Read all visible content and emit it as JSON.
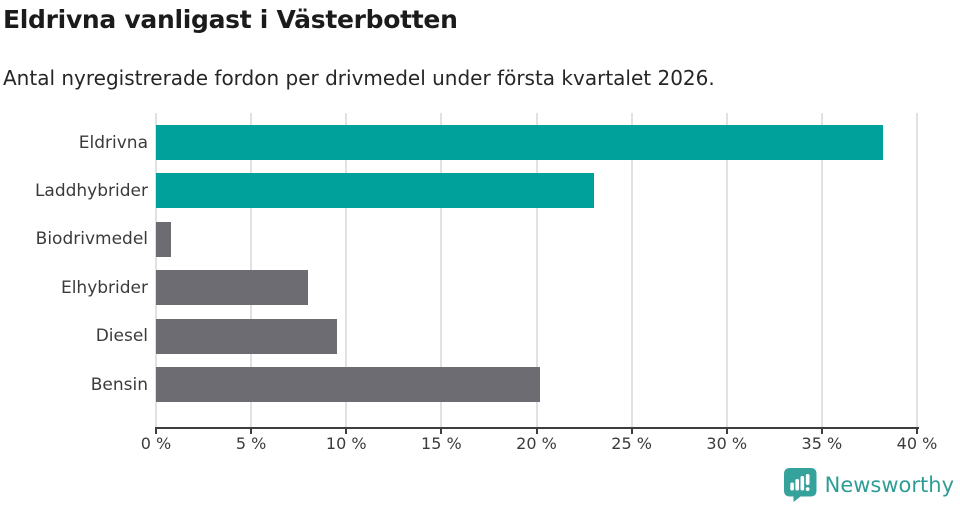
{
  "header": {
    "title": "Eldrivna vanligast i Västerbotten",
    "subtitle": "Antal nyregistrerade fordon per drivmedel under första kvartalet 2026."
  },
  "chart_data": {
    "type": "bar",
    "orientation": "horizontal",
    "title": "Eldrivna vanligast i Västerbotten",
    "subtitle": "Antal nyregistrerade fordon per drivmedel under första kvartalet 2026.",
    "categories": [
      "Eldrivna",
      "Laddhybrider",
      "Biodrivmedel",
      "Elhybrider",
      "Diesel",
      "Bensin"
    ],
    "values": [
      38.2,
      23.0,
      0.8,
      8.0,
      9.5,
      20.2
    ],
    "unit": "%",
    "bar_colors": [
      "#00A19A",
      "#00A19A",
      "#6C6C72",
      "#6C6C72",
      "#6C6C72",
      "#6C6C72"
    ],
    "xlim": [
      0,
      40
    ],
    "x_ticks": [
      0,
      5,
      10,
      15,
      20,
      25,
      30,
      35,
      40
    ],
    "x_tick_labels": [
      "0 %",
      "5 %",
      "10 %",
      "15 %",
      "20 %",
      "25 %",
      "30 %",
      "35 %",
      "40 %"
    ],
    "xlabel": "",
    "ylabel": "",
    "grid": "vertical",
    "legend": "none"
  },
  "colors": {
    "teal": "#00A19A",
    "gray": "#6C6C72",
    "gridline": "#E1E1E1",
    "axis": "#3E3E3E",
    "label_text": "#3B3B3B",
    "brand_teal": "#2F9D96",
    "brand_icon_teal": "#35A29B"
  },
  "footer": {
    "brand": "Newsworthy"
  }
}
